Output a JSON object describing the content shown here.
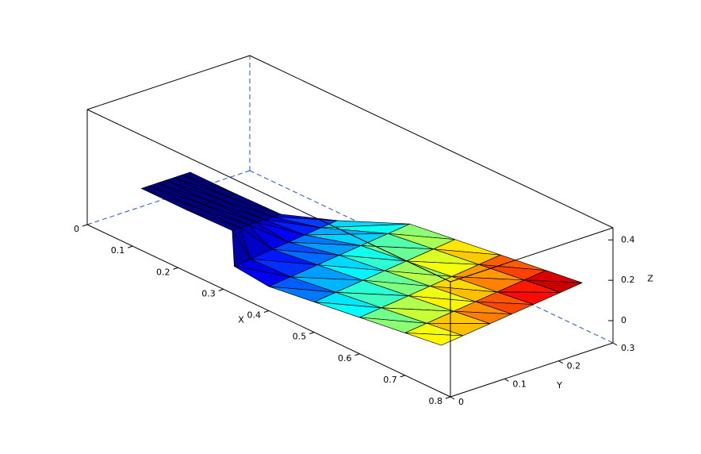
{
  "chart_data": {
    "type": "surface3d",
    "x_label": "X",
    "y_label": "Y",
    "z_label": "Z",
    "xlim": [
      0,
      0.8
    ],
    "ylim": [
      0,
      0.3
    ],
    "zlim": [
      -0.11,
      0.46
    ],
    "xticks": [
      0,
      0.1,
      0.2,
      0.3,
      0.4,
      0.5,
      0.6,
      0.7,
      0.8
    ],
    "yticks": [
      0,
      0.1,
      0.2,
      0.3
    ],
    "zticks": [
      0,
      0.2,
      0.4
    ],
    "x": [
      [
        0,
        0,
        0,
        0,
        0,
        0,
        0
      ],
      [
        0.1,
        0.1,
        0.1,
        0.1,
        0.1,
        0.1,
        0.1
      ],
      [
        0.2,
        0.2,
        0.2,
        0.2,
        0.2,
        0.2,
        0.2
      ],
      [
        0.3,
        0.3,
        0.3,
        0.3,
        0.3,
        0.3,
        0.3
      ],
      [
        0.4,
        0.4,
        0.4,
        0.4,
        0.4,
        0.4,
        0.4
      ],
      [
        0.5,
        0.5,
        0.5,
        0.5,
        0.5,
        0.5,
        0.5
      ],
      [
        0.6,
        0.6,
        0.6,
        0.6,
        0.6,
        0.6,
        0.6
      ],
      [
        0.7,
        0.7,
        0.7,
        0.7,
        0.7,
        0.7,
        0.7
      ],
      [
        0.78,
        0.78,
        0.78,
        0.78,
        0.78,
        0.78,
        0.78
      ]
    ],
    "y": [
      [
        0.1,
        0.115,
        0.13,
        0.145,
        0.16,
        0.175,
        0.19
      ],
      [
        0.1,
        0.115,
        0.13,
        0.145,
        0.16,
        0.175,
        0.19
      ],
      [
        0.1,
        0.115,
        0.13,
        0.145,
        0.16,
        0.175,
        0.19
      ],
      [
        0.02,
        0.05,
        0.09,
        0.12,
        0.15,
        0.18,
        0.21
      ],
      [
        0,
        0.04,
        0.09,
        0.13,
        0.17,
        0.22,
        0.26
      ],
      [
        0,
        0.04,
        0.09,
        0.13,
        0.17,
        0.22,
        0.26
      ],
      [
        0,
        0.04,
        0.09,
        0.13,
        0.17,
        0.22,
        0.26
      ],
      [
        0,
        0.04,
        0.09,
        0.13,
        0.17,
        0.22,
        0.26
      ],
      [
        0,
        0.04,
        0.09,
        0.13,
        0.17,
        0.22,
        0.26
      ]
    ],
    "z": [
      [
        -0.02,
        -0.02,
        -0.02,
        -0.02,
        -0.02,
        -0.02,
        -0.02
      ],
      [
        -0.02,
        -0.02,
        -0.02,
        -0.02,
        -0.02,
        -0.02,
        -0.02
      ],
      [
        -0.015,
        -0.015,
        -0.015,
        -0.015,
        -0.015,
        -0.015,
        -0.015
      ],
      [
        -0.014,
        -0.005,
        0.007,
        0.016,
        0.025,
        0.034,
        0.043
      ],
      [
        0.01,
        0.022,
        0.037,
        0.049,
        0.061,
        0.076,
        0.088
      ],
      [
        0.04,
        0.052,
        0.067,
        0.079,
        0.091,
        0.106,
        0.118
      ],
      [
        0.07,
        0.082,
        0.097,
        0.109,
        0.121,
        0.136,
        0.148
      ],
      [
        0.1,
        0.112,
        0.127,
        0.139,
        0.151,
        0.166,
        0.178
      ],
      [
        0.124,
        0.136,
        0.151,
        0.163,
        0.175,
        0.19,
        0.202
      ]
    ]
  }
}
